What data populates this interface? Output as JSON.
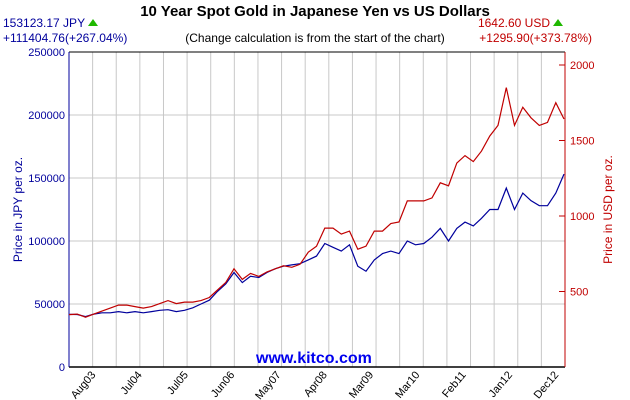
{
  "title": "10 Year Spot Gold in Japanese Yen vs US Dollars",
  "note": "(Change calculation is from the start of the chart)",
  "left_info": {
    "price": "153123.17 JPY",
    "change": "+111404.76(+267.04%)",
    "trend_icon": "up-triangle-icon"
  },
  "right_info": {
    "price": "1642.60 USD",
    "change": "+1295.90(+373.78%)",
    "trend_icon": "up-triangle-icon"
  },
  "watermark": "www.kitco.com",
  "colors": {
    "jpy": "#00009c",
    "usd": "#c00000",
    "up": "#1fb800",
    "grid": "#c8c8c8"
  },
  "chart_data": {
    "type": "line",
    "title": "10 Year Spot Gold in Japanese Yen vs US Dollars",
    "ylabel_left": "Price in JPY per oz.",
    "ylabel_right": "Price in USD per oz.",
    "ylim_left": [
      0,
      250000
    ],
    "ylim_right": [
      0,
      2086
    ],
    "yticks_left": [
      "0",
      "50000",
      "100000",
      "150000",
      "200000",
      "250000"
    ],
    "yticks_left_values": [
      0,
      50000,
      100000,
      150000,
      200000,
      250000
    ],
    "yticks_right": [
      "500",
      "1000",
      "1500",
      "2000"
    ],
    "yticks_right_values": [
      500,
      1000,
      1500,
      2000
    ],
    "xticks": [
      "Aug03",
      "Jul04",
      "Jul05",
      "Jun06",
      "May07",
      "Apr08",
      "Mar09",
      "Mar10",
      "Feb11",
      "Jan12",
      "Dec12"
    ],
    "grid": true,
    "x_range": [
      "Dec 2002",
      "Dec 2012"
    ],
    "series": [
      {
        "name": "JPY",
        "axis": "left",
        "values": [
          41718,
          41700,
          40000,
          42000,
          43000,
          43000,
          44000,
          43000,
          44000,
          43000,
          44000,
          45000,
          45500,
          44000,
          45000,
          47000,
          50000,
          53000,
          60000,
          66000,
          75000,
          67000,
          72000,
          71000,
          75000,
          78000,
          80000,
          81000,
          82000,
          85000,
          88000,
          98000,
          95000,
          92000,
          97000,
          80000,
          76000,
          85000,
          90000,
          92000,
          90000,
          100000,
          97000,
          98000,
          103000,
          110000,
          100000,
          110000,
          115000,
          112000,
          118000,
          125000,
          125000,
          142000,
          125000,
          138000,
          132000,
          128000,
          128000,
          138000,
          153123
        ]
      },
      {
        "name": "USD",
        "axis": "right",
        "values": [
          346.7,
          350,
          330,
          350,
          370,
          390,
          410,
          410,
          400,
          390,
          400,
          420,
          440,
          420,
          430,
          430,
          440,
          460,
          510,
          560,
          650,
          580,
          620,
          600,
          630,
          650,
          670,
          660,
          680,
          760,
          800,
          920,
          920,
          880,
          900,
          780,
          800,
          900,
          900,
          950,
          960,
          1100,
          1100,
          1100,
          1120,
          1220,
          1200,
          1350,
          1400,
          1360,
          1430,
          1530,
          1600,
          1850,
          1600,
          1720,
          1650,
          1600,
          1620,
          1750,
          1642.6
        ]
      }
    ]
  }
}
